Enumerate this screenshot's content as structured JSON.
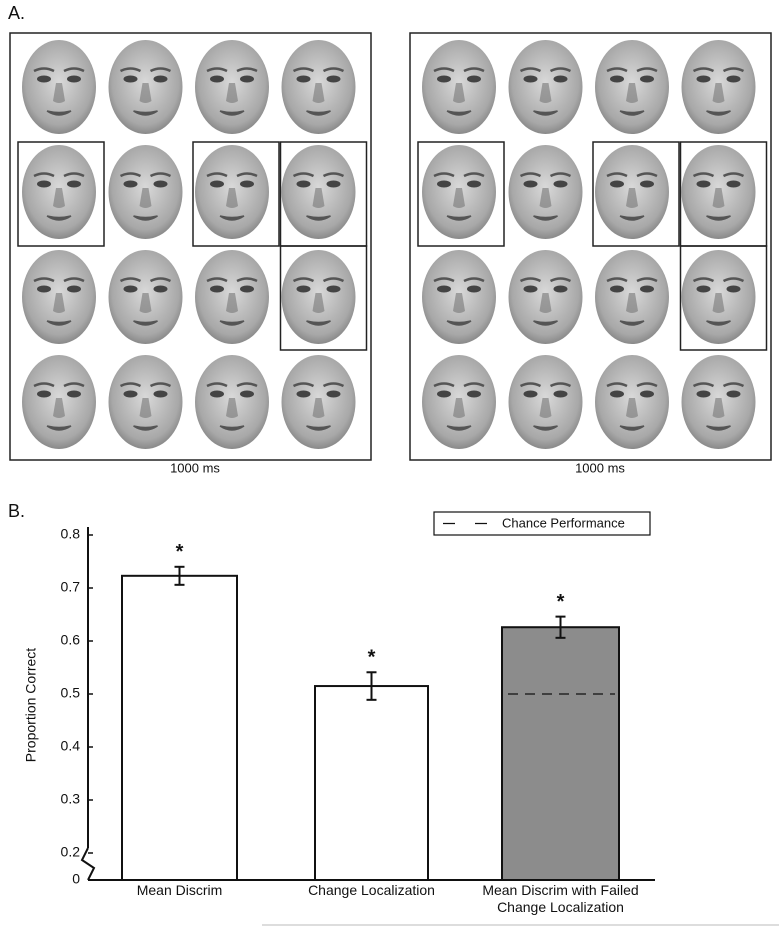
{
  "panel_a": {
    "label": "A.",
    "left_caption": "1000 ms",
    "right_caption": "1000 ms"
  },
  "chart_data": {
    "type": "bar",
    "panel_label": "B.",
    "ylabel": "Proportion Correct",
    "categories": [
      "Mean Discrim",
      "Change Localization",
      "Mean Discrim with Failed\nChange Localization"
    ],
    "values": [
      0.723,
      0.515,
      0.626
    ],
    "errors": [
      0.017,
      0.026,
      0.02
    ],
    "colors": [
      "#ffffff",
      "#ffffff",
      "#8c8c8c"
    ],
    "significance": [
      "*",
      "*",
      "*"
    ],
    "chance": {
      "label": "Chance Performance",
      "value": 0.5
    },
    "legend": "upper right",
    "axis_break": true,
    "ylim": [
      0,
      0.8
    ],
    "yticks": [
      0,
      0.2,
      0.3,
      0.4,
      0.5,
      0.6,
      0.7,
      0.8
    ]
  }
}
